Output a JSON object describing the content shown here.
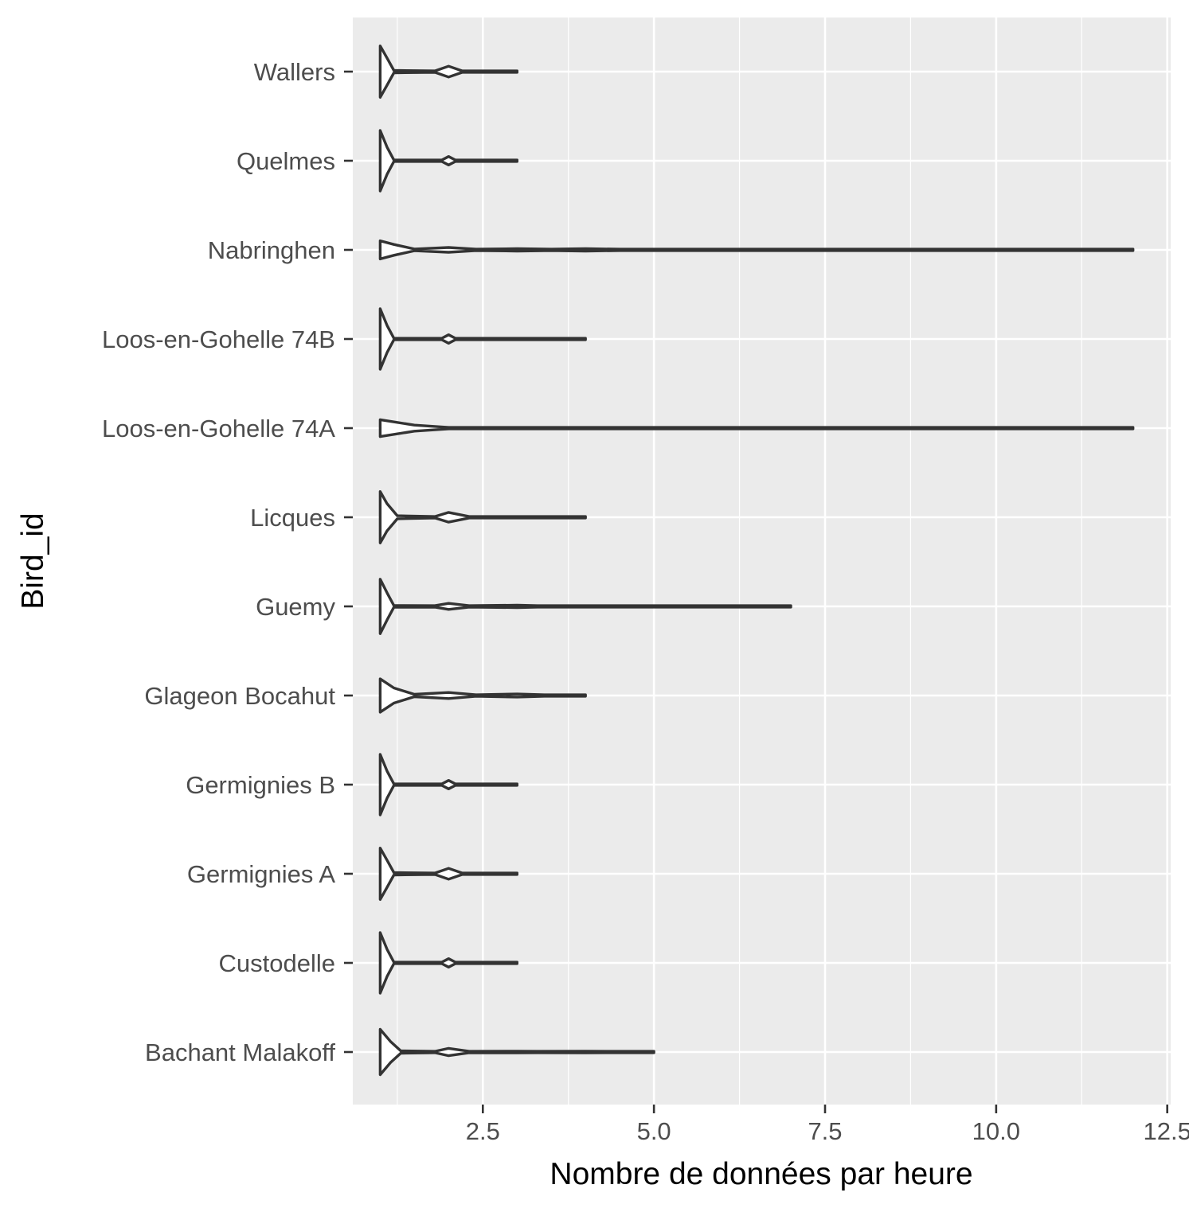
{
  "chart_data": {
    "type": "violin",
    "orientation": "horizontal",
    "xlabel": "Nombre de données par heure",
    "ylabel": "Bird_id",
    "xlim": [
      0.6,
      12.55
    ],
    "xticks": [
      2.5,
      5.0,
      7.5,
      10.0,
      12.5
    ],
    "xtick_labels": [
      "2.5",
      "5.0",
      "7.5",
      "10.0",
      "12.5"
    ],
    "grid": true,
    "colors": {
      "panel": "#ebebeb",
      "grid": "#ffffff",
      "outline": "#333333",
      "text": "#4d4d4d"
    },
    "categories": [
      "Wallers",
      "Quelmes",
      "Nabringhen",
      "Loos-en-Gohelle 74B",
      "Loos-en-Gohelle 74A",
      "Licques",
      "Guemy",
      "Glageon Bocahut",
      "Germignies B",
      "Germignies A",
      "Custodelle",
      "Bachant Malakoff"
    ],
    "violins": [
      {
        "category": "Wallers",
        "min": 1,
        "max": 3,
        "density": [
          [
            1,
            0.85
          ],
          [
            1.1,
            0.45
          ],
          [
            1.2,
            0.04
          ],
          [
            1.8,
            0.0
          ],
          [
            2,
            0.18
          ],
          [
            2.2,
            0.0
          ],
          [
            3,
            0.0
          ]
        ]
      },
      {
        "category": "Quelmes",
        "min": 1,
        "max": 3,
        "density": [
          [
            1,
            1.0
          ],
          [
            1.1,
            0.45
          ],
          [
            1.2,
            0.02
          ],
          [
            1.9,
            0.0
          ],
          [
            2,
            0.14
          ],
          [
            2.1,
            0.0
          ],
          [
            3,
            0.0
          ]
        ]
      },
      {
        "category": "Nabringhen",
        "min": 1,
        "max": 12,
        "density": [
          [
            1,
            0.3
          ],
          [
            1.2,
            0.18
          ],
          [
            1.5,
            0.03
          ],
          [
            2,
            0.08
          ],
          [
            2.4,
            0.0
          ],
          [
            3,
            0.04
          ],
          [
            3.5,
            0.0
          ],
          [
            4,
            0.04
          ],
          [
            4.5,
            0.0
          ],
          [
            12,
            0.0
          ]
        ]
      },
      {
        "category": "Loos-en-Gohelle 74B",
        "min": 1,
        "max": 4,
        "density": [
          [
            1,
            1.0
          ],
          [
            1.1,
            0.45
          ],
          [
            1.2,
            0.02
          ],
          [
            1.9,
            0.0
          ],
          [
            2,
            0.14
          ],
          [
            2.1,
            0.0
          ],
          [
            4,
            0.0
          ]
        ]
      },
      {
        "category": "Loos-en-Gohelle 74A",
        "min": 1,
        "max": 12,
        "density": [
          [
            1,
            0.28
          ],
          [
            1.5,
            0.1
          ],
          [
            2,
            0.02
          ],
          [
            3,
            0.0
          ],
          [
            12,
            0.0
          ]
        ]
      },
      {
        "category": "Licques",
        "min": 1,
        "max": 4,
        "density": [
          [
            1,
            0.85
          ],
          [
            1.1,
            0.45
          ],
          [
            1.25,
            0.05
          ],
          [
            1.8,
            0.0
          ],
          [
            2,
            0.16
          ],
          [
            2.3,
            0.0
          ],
          [
            3,
            0.02
          ],
          [
            3.3,
            0.0
          ],
          [
            4,
            0.0
          ]
        ]
      },
      {
        "category": "Guemy",
        "min": 1,
        "max": 7,
        "density": [
          [
            1,
            0.9
          ],
          [
            1.1,
            0.45
          ],
          [
            1.2,
            0.03
          ],
          [
            1.8,
            0.0
          ],
          [
            2,
            0.1
          ],
          [
            2.3,
            0.0
          ],
          [
            3,
            0.04
          ],
          [
            3.3,
            0.0
          ],
          [
            7,
            0.0
          ]
        ]
      },
      {
        "category": "Glageon Bocahut",
        "min": 1,
        "max": 4,
        "density": [
          [
            1,
            0.55
          ],
          [
            1.2,
            0.25
          ],
          [
            1.5,
            0.04
          ],
          [
            2,
            0.1
          ],
          [
            2.4,
            0.0
          ],
          [
            3,
            0.05
          ],
          [
            3.4,
            0.0
          ],
          [
            4,
            0.0
          ]
        ]
      },
      {
        "category": "Germignies B",
        "min": 1,
        "max": 3,
        "density": [
          [
            1,
            1.0
          ],
          [
            1.1,
            0.45
          ],
          [
            1.2,
            0.02
          ],
          [
            1.9,
            0.0
          ],
          [
            2,
            0.14
          ],
          [
            2.1,
            0.0
          ],
          [
            3,
            0.0
          ]
        ]
      },
      {
        "category": "Germignies A",
        "min": 1,
        "max": 3,
        "density": [
          [
            1,
            0.85
          ],
          [
            1.1,
            0.45
          ],
          [
            1.2,
            0.04
          ],
          [
            1.8,
            0.0
          ],
          [
            2,
            0.18
          ],
          [
            2.2,
            0.0
          ],
          [
            3,
            0.0
          ]
        ]
      },
      {
        "category": "Custodelle",
        "min": 1,
        "max": 3,
        "density": [
          [
            1,
            1.0
          ],
          [
            1.1,
            0.45
          ],
          [
            1.2,
            0.02
          ],
          [
            1.9,
            0.0
          ],
          [
            2,
            0.14
          ],
          [
            2.1,
            0.0
          ],
          [
            3,
            0.0
          ]
        ]
      },
      {
        "category": "Bachant Malakoff",
        "min": 1,
        "max": 5,
        "density": [
          [
            1,
            0.75
          ],
          [
            1.15,
            0.35
          ],
          [
            1.3,
            0.04
          ],
          [
            1.8,
            0.0
          ],
          [
            2,
            0.12
          ],
          [
            2.3,
            0.0
          ],
          [
            3,
            0.03
          ],
          [
            3.3,
            0.0
          ],
          [
            4,
            0.03
          ],
          [
            4.3,
            0.0
          ],
          [
            5,
            0.0
          ]
        ]
      }
    ]
  }
}
